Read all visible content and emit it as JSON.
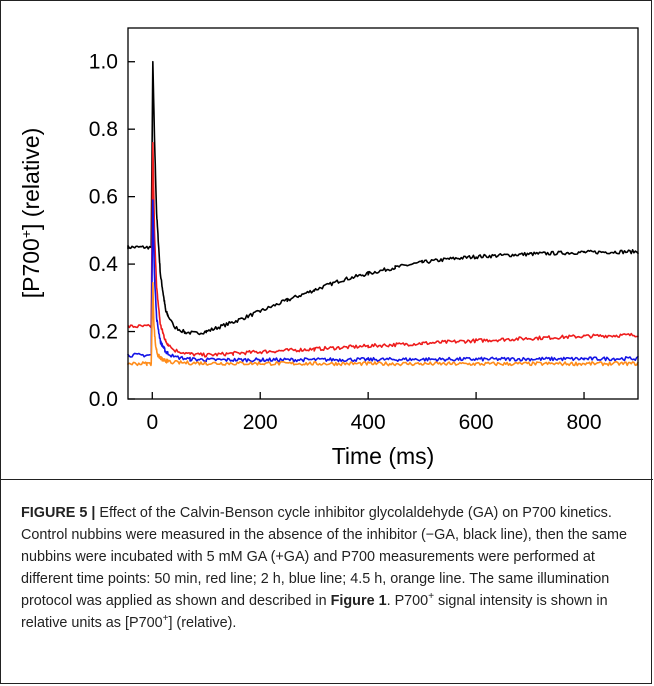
{
  "chart_data": {
    "type": "line",
    "xlabel": "Time (ms)",
    "ylabel_prefix": "[P700",
    "ylabel_sup": "+",
    "ylabel_suffix": "] (relative)",
    "xlim": [
      -45,
      900
    ],
    "ylim": [
      0.0,
      1.1
    ],
    "x_ticks": [
      0,
      200,
      400,
      600,
      800
    ],
    "x_tick_labels": [
      "0",
      "200",
      "400",
      "600",
      "800"
    ],
    "y_ticks": [
      0.0,
      0.2,
      0.4,
      0.6,
      0.8,
      1.0
    ],
    "y_tick_labels": [
      "0.0",
      "0.2",
      "0.4",
      "0.6",
      "0.8",
      "1.0"
    ],
    "grid": false,
    "series": [
      {
        "color": "#000000",
        "points": [
          [
            -45,
            0.45
          ],
          [
            -10,
            0.45
          ],
          [
            -2,
            0.45
          ],
          [
            1,
            1.0
          ],
          [
            4,
            0.78
          ],
          [
            8,
            0.55
          ],
          [
            15,
            0.37
          ],
          [
            25,
            0.26
          ],
          [
            40,
            0.215
          ],
          [
            60,
            0.198
          ],
          [
            80,
            0.195
          ],
          [
            100,
            0.2
          ],
          [
            150,
            0.228
          ],
          [
            200,
            0.26
          ],
          [
            250,
            0.293
          ],
          [
            300,
            0.323
          ],
          [
            350,
            0.352
          ],
          [
            400,
            0.372
          ],
          [
            450,
            0.39
          ],
          [
            500,
            0.405
          ],
          [
            550,
            0.415
          ],
          [
            600,
            0.422
          ],
          [
            700,
            0.43
          ],
          [
            800,
            0.435
          ],
          [
            900,
            0.437
          ]
        ]
      },
      {
        "color": "#ee1c1c",
        "points": [
          [
            -45,
            0.215
          ],
          [
            -10,
            0.215
          ],
          [
            -2,
            0.215
          ],
          [
            1,
            0.76
          ],
          [
            4,
            0.5
          ],
          [
            8,
            0.33
          ],
          [
            15,
            0.22
          ],
          [
            25,
            0.17
          ],
          [
            40,
            0.145
          ],
          [
            70,
            0.133
          ],
          [
            100,
            0.13
          ],
          [
            150,
            0.135
          ],
          [
            200,
            0.14
          ],
          [
            300,
            0.148
          ],
          [
            400,
            0.157
          ],
          [
            500,
            0.165
          ],
          [
            600,
            0.173
          ],
          [
            700,
            0.18
          ],
          [
            800,
            0.186
          ],
          [
            900,
            0.19
          ]
        ]
      },
      {
        "color": "#1414e6",
        "points": [
          [
            -45,
            0.13
          ],
          [
            -10,
            0.13
          ],
          [
            -2,
            0.13
          ],
          [
            1,
            0.59
          ],
          [
            4,
            0.37
          ],
          [
            8,
            0.24
          ],
          [
            15,
            0.17
          ],
          [
            25,
            0.14
          ],
          [
            40,
            0.125
          ],
          [
            70,
            0.118
          ],
          [
            100,
            0.116
          ],
          [
            200,
            0.116
          ],
          [
            400,
            0.117
          ],
          [
            600,
            0.118
          ],
          [
            800,
            0.119
          ],
          [
            900,
            0.12
          ]
        ]
      },
      {
        "color": "#ff8c1a",
        "points": [
          [
            -45,
            0.105
          ],
          [
            -10,
            0.105
          ],
          [
            -2,
            0.105
          ],
          [
            1,
            0.345
          ],
          [
            3,
            0.22
          ],
          [
            6,
            0.16
          ],
          [
            10,
            0.13
          ],
          [
            20,
            0.115
          ],
          [
            40,
            0.108
          ],
          [
            100,
            0.106
          ],
          [
            300,
            0.105
          ],
          [
            600,
            0.104
          ],
          [
            900,
            0.105
          ]
        ]
      }
    ]
  },
  "caption": {
    "label": "FIGURE 5 |",
    "t1": " Effect of the Calvin-Benson cycle inhibitor glycolaldehyde (GA) on P700 kinetics. Control nubbins were measured in the absence of the inhibitor (−GA, black line), then the same nubbins were incubated with 5 mM GA (+GA) and P700 measurements were performed at different time points: 50 min, red line; 2 h, blue line; 4.5 h, orange line. The same illumination protocol was applied as shown and described in ",
    "figref": "Figure 1",
    "t2": ". P700",
    "sup1": "+",
    "t3": " signal intensity is shown in relative units as [P700",
    "sup2": "+",
    "t4": "] (relative)."
  }
}
